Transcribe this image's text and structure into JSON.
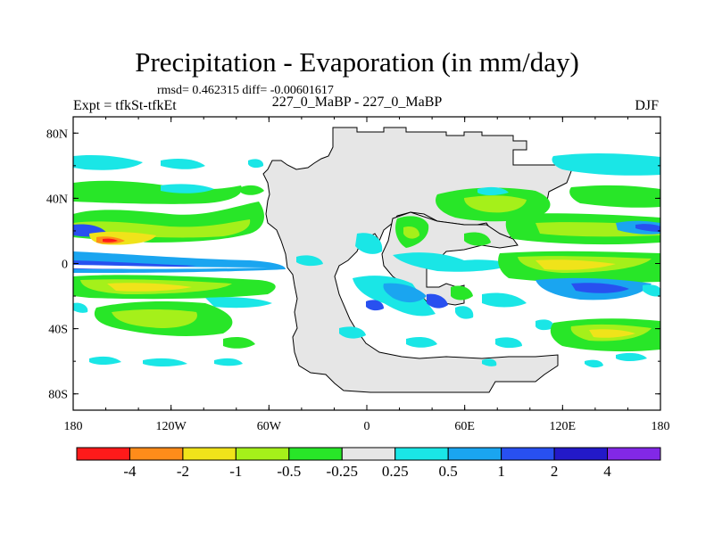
{
  "chart_data": {
    "type": "contour-map",
    "title": "Precipitation - Evaporation (in mm/day)",
    "stats_text": "rmsd= 0.462315 diff= -0.00601617",
    "left_label": "Expt = tfkSt-tfkEt",
    "center_label": "227_0_MaBP - 227_0_MaBP",
    "right_label": "DJF",
    "x_ticks": [
      "180",
      "120W",
      "60W",
      "0",
      "60E",
      "120E",
      "180"
    ],
    "x_tick_values": [
      -180,
      -120,
      -60,
      0,
      60,
      120,
      180
    ],
    "y_ticks": [
      "80N",
      "40N",
      "0",
      "40S",
      "80S"
    ],
    "y_tick_values": [
      80,
      40,
      0,
      -40,
      -80
    ],
    "xlim": [
      -180,
      180
    ],
    "ylim": [
      -90,
      90
    ],
    "colorbar": {
      "labels": [
        "-4",
        "-2",
        "-1",
        "-0.5",
        "-0.25",
        "0.25",
        "0.5",
        "1",
        "2",
        "4"
      ],
      "colors": [
        "#ff1a1a",
        "#ff8c1a",
        "#f0e31a",
        "#a5f01a",
        "#28e628",
        "#e6e6e6",
        "#1ae6e6",
        "#1aa5f0",
        "#2850f0",
        "#2319c8",
        "#8228e6"
      ]
    },
    "land_color": "#e6e6e6",
    "ocean_color": "#ffffff"
  }
}
